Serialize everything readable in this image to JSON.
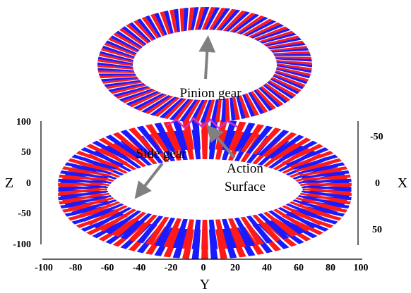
{
  "figure": {
    "axes": {
      "y": {
        "label": "Y",
        "ticks": [
          "-100",
          "-80",
          "-60",
          "-40",
          "-20",
          "0",
          "20",
          "40",
          "60",
          "80",
          "100"
        ]
      },
      "z": {
        "label": "Z",
        "ticks": [
          "100",
          "50",
          "0",
          "-50",
          "-100"
        ]
      },
      "x": {
        "label": "X",
        "ticks": [
          "-50",
          "0",
          "50"
        ]
      }
    },
    "annotations": {
      "pinion": "Pinion gear",
      "side": "Side gear",
      "action_line1": "Action",
      "action_line2": "Surface"
    },
    "colors": {
      "tooth_red": "#ff1a1a",
      "tooth_blue": "#1a1aff",
      "contact": "#cc33cc",
      "arrow": "#808080"
    }
  }
}
